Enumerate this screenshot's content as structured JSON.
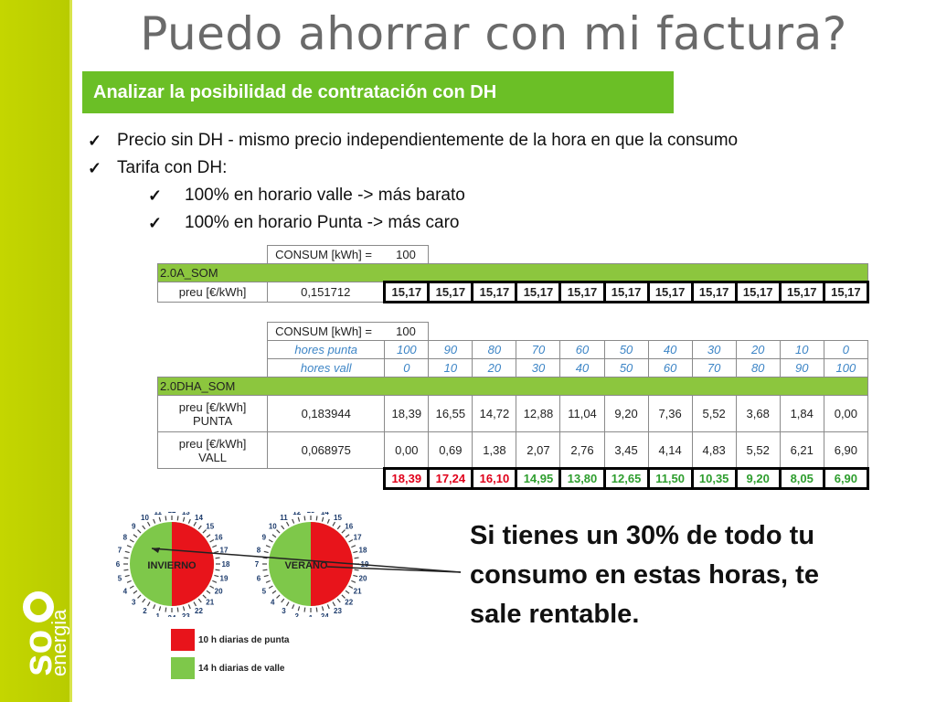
{
  "title": "Puedo ahorrar con mi factura?",
  "subtitle": "Analizar la posibilidad de contratación con DH",
  "bullets": [
    "Precio sin DH - mismo precio independientemente de la hora en que la consumo",
    "Tarifa con DH:",
    "100% en horario valle -> más barato",
    "100% en horario Punta -> más caro"
  ],
  "table1": {
    "consum_label": "CONSUM [kWh] =",
    "consum_value": "100",
    "tariff": "2.0A_SOM",
    "price_label": "preu [€/kWh]",
    "price_value": "0,151712",
    "costs": [
      "15,17",
      "15,17",
      "15,17",
      "15,17",
      "15,17",
      "15,17",
      "15,17",
      "15,17",
      "15,17",
      "15,17",
      "15,17"
    ]
  },
  "table2": {
    "consum_label": "CONSUM [kWh] =",
    "consum_value": "100",
    "hores_punta_label": "hores punta",
    "hores_punta": [
      "100",
      "90",
      "80",
      "70",
      "60",
      "50",
      "40",
      "30",
      "20",
      "10",
      "0"
    ],
    "hores_vall_label": "hores vall",
    "hores_vall": [
      "0",
      "10",
      "20",
      "30",
      "40",
      "50",
      "60",
      "70",
      "80",
      "90",
      "100"
    ],
    "tariff": "2.0DHA_SOM",
    "punta_label_1": "preu [€/kWh]",
    "punta_label_2": "PUNTA",
    "punta_price": "0,183944",
    "punta_costs": [
      "18,39",
      "16,55",
      "14,72",
      "12,88",
      "11,04",
      "9,20",
      "7,36",
      "5,52",
      "3,68",
      "1,84",
      "0,00"
    ],
    "vall_label_1": "preu [€/kWh]",
    "vall_label_2": "VALL",
    "vall_price": "0,068975",
    "vall_costs": [
      "0,00",
      "0,69",
      "1,38",
      "2,07",
      "2,76",
      "3,45",
      "4,14",
      "4,83",
      "5,52",
      "6,21",
      "6,90"
    ],
    "totals": [
      "18,39",
      "17,24",
      "16,10",
      "14,95",
      "13,80",
      "12,65",
      "11,50",
      "10,35",
      "9,20",
      "8,05",
      "6,90"
    ]
  },
  "clocks": {
    "winter_label": "INVIERNO",
    "summer_label": "VERANO",
    "winter_numbers": [
      "12",
      "13",
      "14",
      "15",
      "16",
      "17",
      "18",
      "19",
      "20",
      "21",
      "22",
      "23",
      "24",
      "1",
      "2",
      "3",
      "4",
      "5",
      "6",
      "7",
      "8",
      "9",
      "10",
      "11"
    ],
    "summer_numbers": [
      "13",
      "14",
      "15",
      "16",
      "17",
      "18",
      "19",
      "20",
      "21",
      "22",
      "23",
      "24",
      "1",
      "2",
      "3",
      "4",
      "5",
      "6",
      "7",
      "8",
      "9",
      "10",
      "11",
      "12"
    ]
  },
  "legend": {
    "punta": "10 h diarias de punta",
    "valle": "14 h diarias de valle",
    "punta_color": "#e8141b",
    "valle_color": "#7ec84a"
  },
  "callout": "Si tienes un 30% de todo tu consumo en estas horas, te sale rentable.",
  "logo_text": {
    "so": "so",
    "energia": "energia"
  },
  "colors": {
    "sidebar": "#c4d600",
    "subtitle_bg": "#6bbf26",
    "table_green": "#8cc63e"
  }
}
